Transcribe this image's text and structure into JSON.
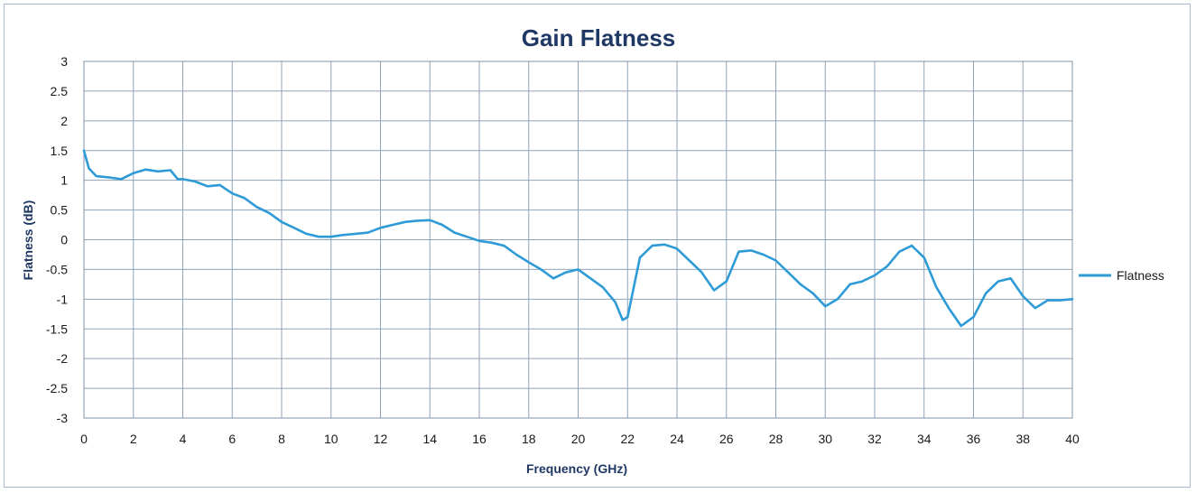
{
  "chart_data": {
    "type": "line",
    "title": "Gain Flatness",
    "xlabel": "Frequency (GHz)",
    "ylabel": "Flatness (dB)",
    "xlim": [
      0,
      40
    ],
    "ylim": [
      -3,
      3
    ],
    "x_ticks": [
      0,
      2,
      4,
      6,
      8,
      10,
      12,
      14,
      16,
      18,
      20,
      22,
      24,
      26,
      28,
      30,
      32,
      34,
      36,
      38,
      40
    ],
    "y_ticks": [
      3,
      2.5,
      2,
      1.5,
      1,
      0.5,
      0,
      -0.5,
      -1,
      -1.5,
      -2,
      -2.5,
      -3
    ],
    "x_tick_labels": [
      "0",
      "2",
      "4",
      "6",
      "8",
      "10",
      "12",
      "14",
      "16",
      "18",
      "20",
      "22",
      "24",
      "26",
      "28",
      "30",
      "32",
      "34",
      "36",
      "38",
      "40"
    ],
    "y_tick_labels": [
      "3",
      "2.5",
      "2",
      "1.5",
      "1",
      "0.5",
      "0",
      "-0.5",
      "-1",
      "-1.5",
      "-2",
      "-2.5",
      "-3"
    ],
    "grid": true,
    "legend_position": "right",
    "series": [
      {
        "name": "Flatness",
        "color": "#2e9bd6",
        "x": [
          0,
          0.2,
          0.5,
          1,
          1.5,
          2,
          2.5,
          3,
          3.5,
          3.8,
          4,
          4.5,
          5,
          5.5,
          6,
          6.5,
          7,
          7.5,
          8,
          8.5,
          9,
          9.5,
          10,
          10.5,
          11,
          11.5,
          12,
          12.5,
          13,
          13.5,
          14,
          14.5,
          15,
          15.5,
          16,
          16.5,
          17,
          17.5,
          18,
          18.5,
          19,
          19.5,
          20,
          20.5,
          21,
          21.5,
          21.8,
          22,
          22.5,
          23,
          23.5,
          24,
          24.5,
          25,
          25.5,
          26,
          26.5,
          27,
          27.5,
          28,
          28.5,
          29,
          29.5,
          30,
          30.5,
          31,
          31.5,
          32,
          32.5,
          33,
          33.5,
          34,
          34.5,
          35,
          35.5,
          36,
          36.5,
          37,
          37.5,
          38,
          38.5,
          39,
          39.5,
          40
        ],
        "values": [
          1.5,
          1.2,
          1.07,
          1.05,
          1.02,
          1.12,
          1.18,
          1.15,
          1.17,
          1.02,
          1.02,
          0.98,
          0.9,
          0.92,
          0.78,
          0.7,
          0.55,
          0.45,
          0.3,
          0.2,
          0.1,
          0.05,
          0.05,
          0.08,
          0.1,
          0.12,
          0.2,
          0.25,
          0.3,
          0.32,
          0.33,
          0.25,
          0.12,
          0.05,
          -0.02,
          -0.05,
          -0.1,
          -0.25,
          -0.38,
          -0.5,
          -0.65,
          -0.55,
          -0.5,
          -0.65,
          -0.8,
          -1.05,
          -1.35,
          -1.3,
          -0.3,
          -0.1,
          -0.08,
          -0.15,
          -0.35,
          -0.55,
          -0.85,
          -0.7,
          -0.2,
          -0.18,
          -0.25,
          -0.35,
          -0.55,
          -0.75,
          -0.9,
          -1.12,
          -1.0,
          -0.75,
          -0.7,
          -0.6,
          -0.45,
          -0.2,
          -0.1,
          -0.3,
          -0.8,
          -1.15,
          -1.45,
          -1.3,
          -0.9,
          -0.7,
          -0.65,
          -0.95,
          -1.15,
          -1.02,
          -1.02,
          -1.0
        ]
      }
    ]
  }
}
